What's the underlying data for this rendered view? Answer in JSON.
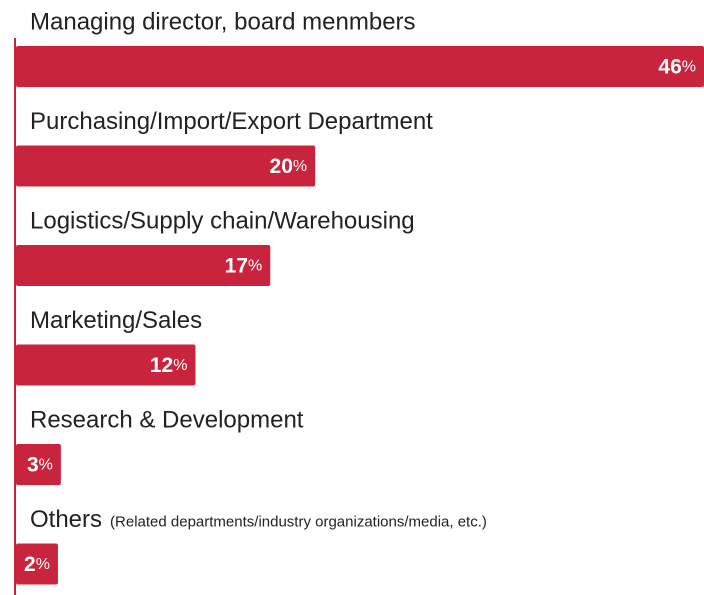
{
  "chart_data": {
    "type": "bar",
    "orientation": "horizontal",
    "categories": [
      "Managing director, board menmbers",
      "Purchasing/Import/Export Department",
      "Logistics/Supply chain/Warehousing",
      "Marketing/Sales",
      "Research & Development",
      "Others"
    ],
    "category_notes": [
      null,
      null,
      null,
      null,
      null,
      "(Related departments/industry organizations/media, etc.)"
    ],
    "values": [
      46,
      20,
      17,
      12,
      3,
      2
    ],
    "value_labels": [
      "46%",
      "20%",
      "17%",
      "12%",
      "3%",
      "2%"
    ],
    "color": "#c8243e",
    "xlim": [
      0,
      46
    ]
  }
}
